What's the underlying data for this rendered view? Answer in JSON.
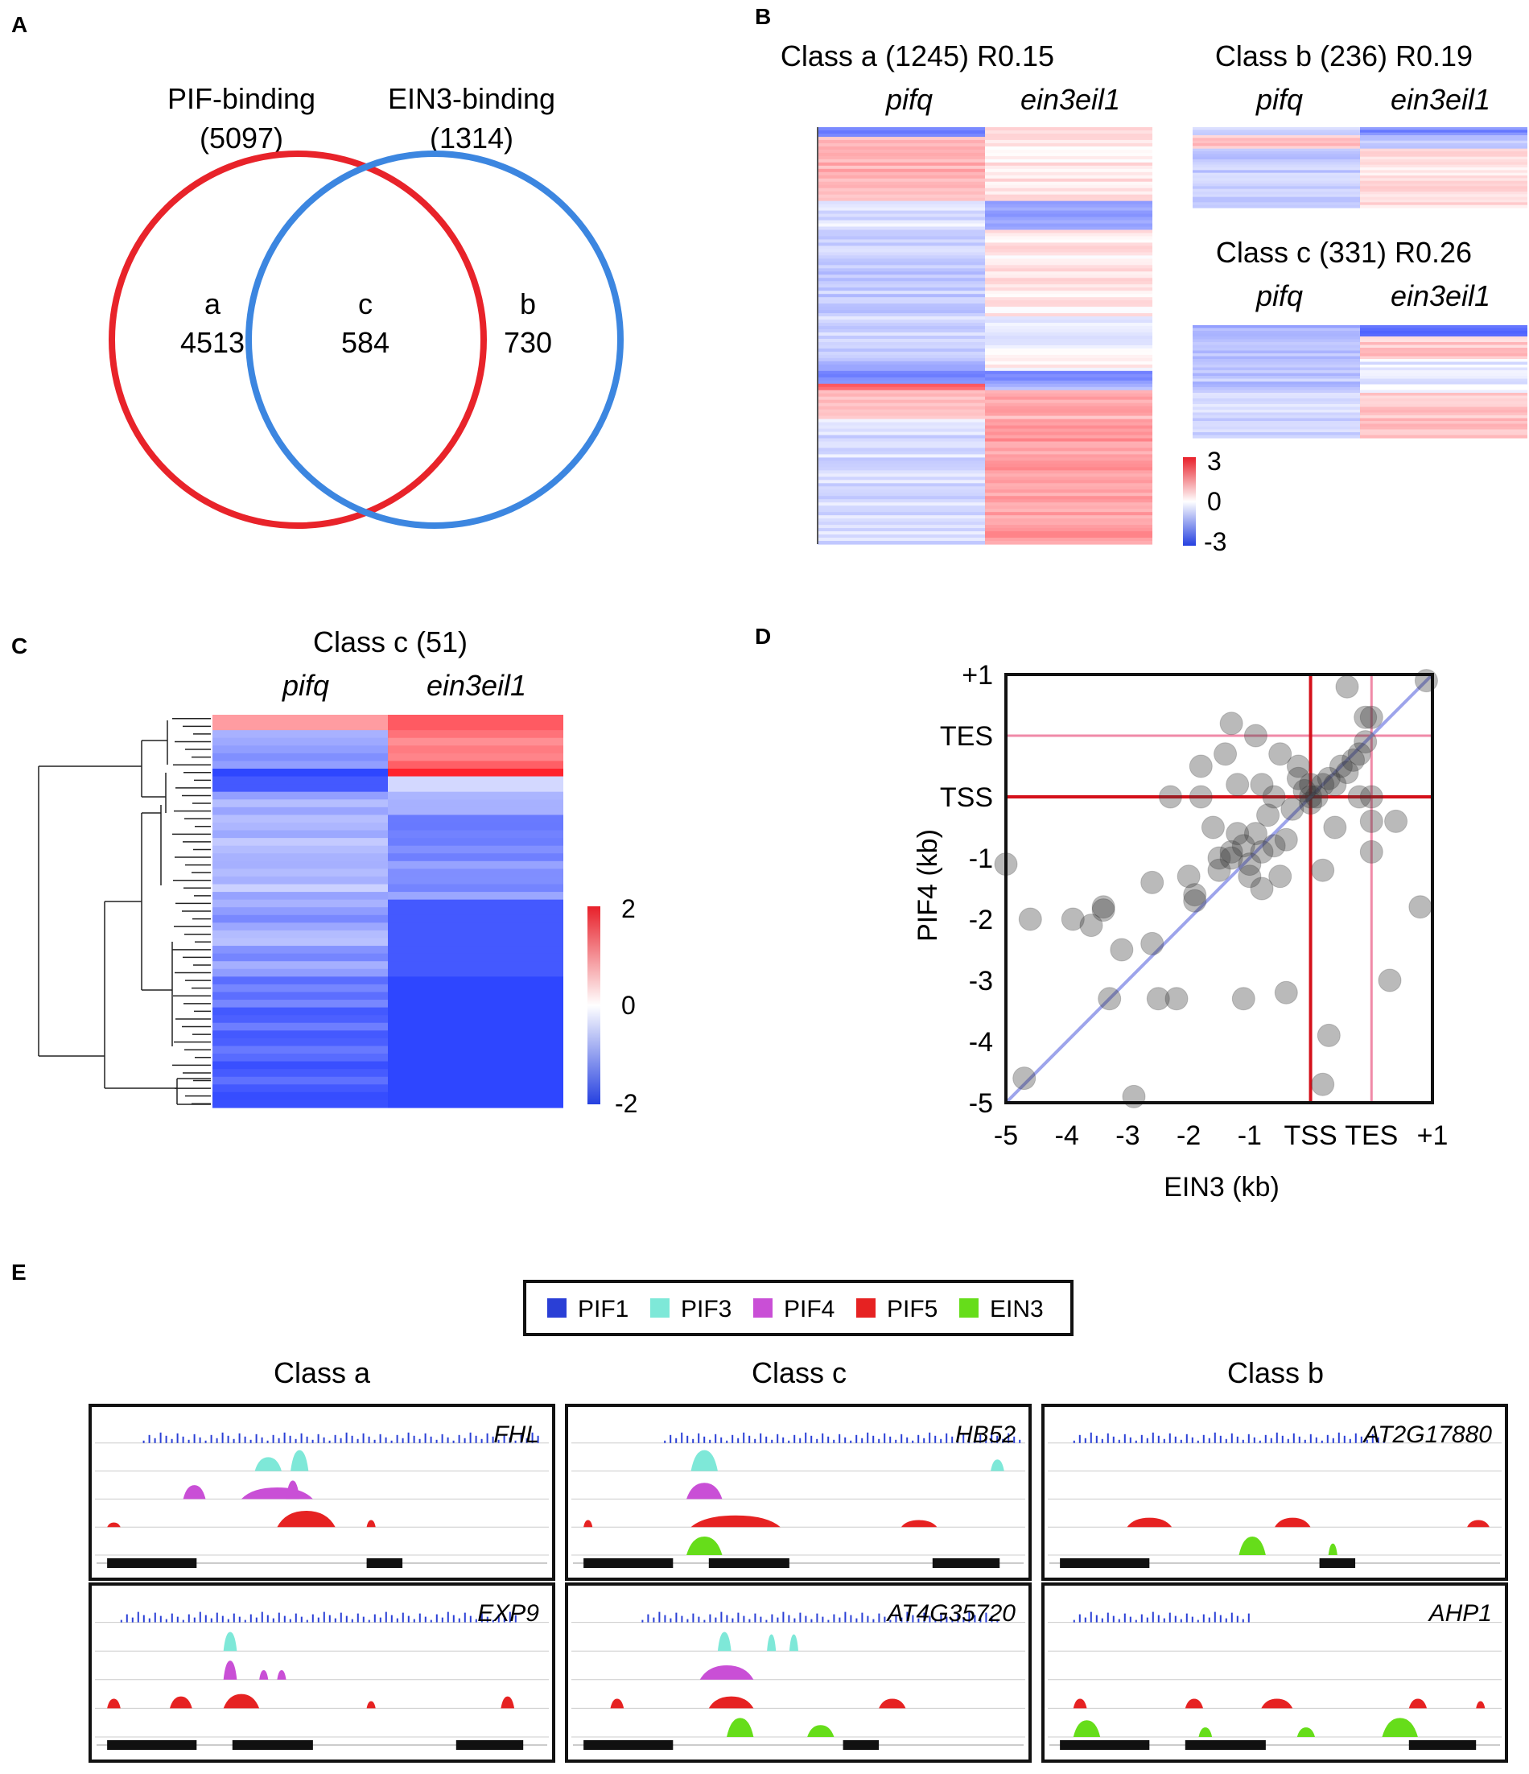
{
  "colors": {
    "red": "#e8232a",
    "blue": "#3c86e0",
    "pif1": "#2a3fd6",
    "pif3": "#7ee8d8",
    "pif4": "#c94fd6",
    "pif5": "#e62222",
    "ein3": "#66dd1a"
  },
  "panels": {
    "A": {
      "letter": "A",
      "set1_title": "PIF-binding",
      "set1_total": "(5097)",
      "set2_title": "EIN3-binding",
      "set2_total": "(1314)",
      "region_a_label": "a",
      "region_a_count": "4513",
      "region_c_label": "c",
      "region_c_count": "584",
      "region_b_label": "b",
      "region_b_count": "730"
    },
    "B": {
      "letter": "B",
      "class_a": {
        "title": "Class a (1245) R0.15",
        "col1": "pifq",
        "col2": "ein3eil1"
      },
      "class_b": {
        "title": "Class b (236) R0.19",
        "col1": "pifq",
        "col2": "ein3eil1"
      },
      "class_c": {
        "title": "Class c (331) R0.26",
        "col1": "pifq",
        "col2": "ein3eil1"
      },
      "scale": {
        "max": "3",
        "mid": "0",
        "min": "-3"
      }
    },
    "C": {
      "letter": "C",
      "title": "Class c (51)",
      "col1": "pifq",
      "col2": "ein3eil1",
      "scale": {
        "max": "2",
        "mid": "0",
        "min": "-2"
      }
    },
    "D": {
      "letter": "D",
      "xlabel": "EIN3 (kb)",
      "ylabel": "PIF4 (kb)",
      "x_ticks": [
        "-5",
        "-4",
        "-3",
        "-2",
        "-1",
        "TSS",
        "TES",
        "+1"
      ],
      "y_ticks": [
        "+1",
        "TES",
        "TSS",
        "-1",
        "-2",
        "-3",
        "-4",
        "-5"
      ]
    },
    "E": {
      "letter": "E",
      "legend": [
        "PIF1",
        "PIF3",
        "PIF4",
        "PIF5",
        "EIN3"
      ],
      "columns": [
        "Class a",
        "Class c",
        "Class b"
      ],
      "genes": [
        [
          "FHL",
          "EXP9"
        ],
        [
          "HB52",
          "AT4G35720"
        ],
        [
          "AT2G17880",
          "AHP1"
        ]
      ]
    }
  },
  "chart_data": {
    "type": "scatter",
    "title": "",
    "xlabel": "EIN3 (kb)",
    "ylabel": "PIF4 (kb)",
    "xlim": [
      -5,
      2
    ],
    "ylim": [
      -5,
      2
    ],
    "x_tick_labels": [
      "-5",
      "-4",
      "-3",
      "-2",
      "-1",
      "TSS",
      "TES",
      "+1"
    ],
    "y_tick_labels": [
      "+1",
      "TES",
      "TSS",
      "-1",
      "-2",
      "-3",
      "-4",
      "-5"
    ],
    "reference_lines": {
      "TSS": 0,
      "TES": 1
    },
    "points": [
      [
        -5,
        -1.1
      ],
      [
        -4.7,
        -4.6
      ],
      [
        -4.6,
        -2.0
      ],
      [
        -3.9,
        -2.0
      ],
      [
        -3.6,
        -2.1
      ],
      [
        -3.4,
        -1.8
      ],
      [
        -3.4,
        -1.85
      ],
      [
        -3.3,
        -3.3
      ],
      [
        -3.1,
        -2.5
      ],
      [
        -2.6,
        -1.4
      ],
      [
        -2.6,
        -2.4
      ],
      [
        -2.5,
        -3.3
      ],
      [
        -2.3,
        0.0
      ],
      [
        -2.0,
        -1.3
      ],
      [
        -1.9,
        -1.6
      ],
      [
        -1.9,
        -1.7
      ],
      [
        -2.2,
        -3.3
      ],
      [
        -1.8,
        0.5
      ],
      [
        -1.8,
        0.0
      ],
      [
        -1.6,
        -0.5
      ],
      [
        -1.5,
        -1.0
      ],
      [
        -1.5,
        -1.2
      ],
      [
        -1.3,
        -0.9
      ],
      [
        -1.3,
        -1.0
      ],
      [
        -1.3,
        1.2
      ],
      [
        -1.4,
        0.7
      ],
      [
        -1.2,
        -0.6
      ],
      [
        -1.1,
        -0.8
      ],
      [
        -1.0,
        -1.1
      ],
      [
        -1.0,
        -1.3
      ],
      [
        -1.1,
        -3.3
      ],
      [
        -0.9,
        -0.6
      ],
      [
        -0.9,
        1.0
      ],
      [
        -0.8,
        -0.9
      ],
      [
        -0.8,
        -1.5
      ],
      [
        -0.7,
        -0.3
      ],
      [
        -0.6,
        0.0
      ],
      [
        -0.6,
        -0.8
      ],
      [
        -0.5,
        -1.3
      ],
      [
        -0.4,
        -0.7
      ],
      [
        -0.3,
        -0.2
      ],
      [
        -0.2,
        0.3
      ],
      [
        -0.4,
        -3.2
      ],
      [
        -0.1,
        0.1
      ],
      [
        0.0,
        0.0
      ],
      [
        0.0,
        -0.1
      ],
      [
        0.0,
        0.2
      ],
      [
        0.1,
        0.0
      ],
      [
        0.2,
        0.2
      ],
      [
        0.3,
        0.3
      ],
      [
        0.4,
        0.2
      ],
      [
        0.5,
        0.5
      ],
      [
        0.6,
        0.4
      ],
      [
        0.7,
        0.6
      ],
      [
        0.8,
        0.7
      ],
      [
        0.8,
        0.0
      ],
      [
        0.4,
        -0.5
      ],
      [
        0.2,
        -1.2
      ],
      [
        -0.2,
        0.5
      ],
      [
        1.0,
        0.0
      ],
      [
        1.0,
        -0.9
      ],
      [
        1.0,
        -0.4
      ],
      [
        0.9,
        1.3
      ],
      [
        1.0,
        1.3
      ],
      [
        0.6,
        1.8
      ],
      [
        1.4,
        -0.4
      ],
      [
        1.3,
        -3.0
      ],
      [
        1.8,
        -1.8
      ],
      [
        1.9,
        1.9
      ],
      [
        0.3,
        -3.9
      ],
      [
        0.2,
        -4.7
      ],
      [
        -2.9,
        -4.9
      ],
      [
        -0.8,
        0.2
      ],
      [
        -1.2,
        0.2
      ],
      [
        -0.5,
        0.7
      ],
      [
        0.9,
        0.9
      ]
    ]
  }
}
